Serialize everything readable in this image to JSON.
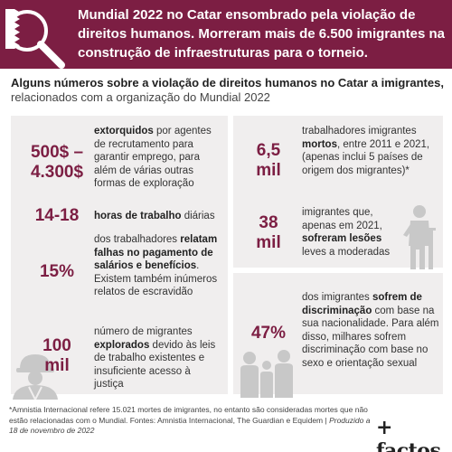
{
  "header": {
    "title": "Mundial 2022 no Catar ensombrado pela violação de direitos humanos. Morreram mais de 6.500 imigrantes na construção de infraestruturas para o torneio."
  },
  "subtitle": {
    "bold": "Alguns números sobre a violação de direitos humanos no Catar a imigrantes,",
    "regular": "relacionados com a organização do Mundial 2022"
  },
  "stats": [
    {
      "value_line1": "500$ –",
      "value_line2": "4.300$",
      "desc_bold": "extorquidos",
      "desc_rest": " por agentes de recrutamento para garantir emprego, para além de várias outras formas de exploração"
    },
    {
      "value_line1": "14-18",
      "desc_bold": "horas de trabalho",
      "desc_rest": " diárias"
    },
    {
      "value_line1": "15%",
      "desc_pre": "dos trabalhadores ",
      "desc_bold": "relatam falhas no pagamento de salários e benefícios",
      "desc_rest": ". Existem também inúmeros relatos de escravidão"
    },
    {
      "value_line1": "100",
      "value_line2": "mil",
      "desc_pre": "número de migrantes ",
      "desc_bold": "explorados",
      "desc_rest": " devido às leis de trabalho existentes e insuficiente acesso à justiça"
    },
    {
      "value_line1": "6,5",
      "value_line2": "mil",
      "desc_pre": "trabalhadores imigrantes ",
      "desc_bold": "mortos",
      "desc_rest": ", entre 2011 e 2021, (apenas inclui 5 países de origem dos migrantes)*"
    },
    {
      "value_line1": "38",
      "value_line2": "mil",
      "desc_pre": "imigrantes que, apenas em 2021, ",
      "desc_bold": "sofreram lesões",
      "desc_rest": " leves a moderadas"
    },
    {
      "value_line1": "47%",
      "desc_pre": "dos imigrantes ",
      "desc_bold": "sofrem de discriminação",
      "desc_rest": " com base na sua nacionalidade. Para além disso, milhares sofrem discriminação com base no sexo e orientação sexual"
    }
  ],
  "footnote": {
    "text": "*Amnistia Internacional refere 15.021 mortes de imigrantes, no entanto são consideradas mortes que não estão relacionadas com o Mundial. Fontes: Amnistia Internacional, The Guardian e Equidem | ",
    "italic": "Produzido a 18 de novembro de 2022"
  },
  "brand": {
    "logo": "+ factos"
  },
  "colors": {
    "accent": "#7c1e43",
    "panel": "#f0eeee",
    "icon_gray": "#c8c8c8"
  },
  "icons": [
    "qatar-flag-icon",
    "magnifier-icon",
    "worker-icon",
    "injured-person-icon",
    "people-group-icon"
  ]
}
